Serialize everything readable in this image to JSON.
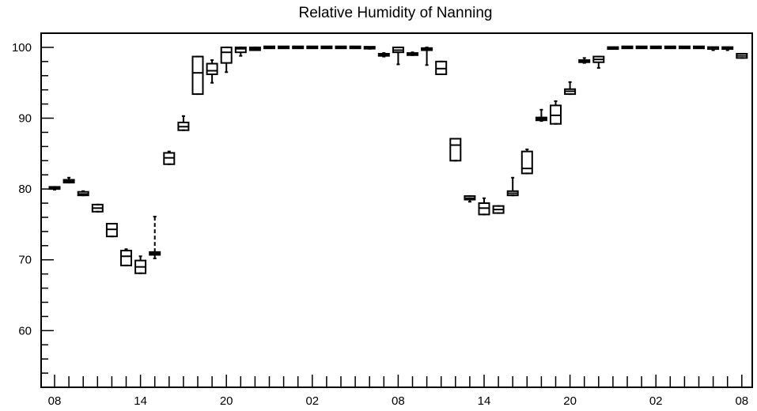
{
  "chart_data": {
    "type": "boxplot",
    "title": "Relative Humidity of Nanning",
    "xlabel": "",
    "ylabel": "",
    "ylim": [
      52,
      102
    ],
    "y_ticks": [
      60,
      70,
      80,
      90,
      100
    ],
    "x_tick_labels": [
      "08",
      "14",
      "20",
      "02",
      "08",
      "14",
      "20",
      "02",
      "08"
    ],
    "x_tick_hours": [
      0,
      6,
      12,
      18,
      24,
      30,
      36,
      42,
      48
    ],
    "grid": false,
    "legend": "none",
    "colors": {
      "box": "#000000",
      "background": "#ffffff"
    },
    "series": [
      {
        "hour": 0,
        "min": 79.9,
        "q1": 80.0,
        "median": 80.1,
        "q3": 80.3,
        "max": 80.3
      },
      {
        "hour": 1,
        "min": 80.9,
        "q1": 80.9,
        "median": 81.1,
        "q3": 81.3,
        "max": 81.6
      },
      {
        "hour": 2,
        "min": 79.1,
        "q1": 79.1,
        "median": 79.3,
        "q3": 79.6,
        "max": 79.7
      },
      {
        "hour": 3,
        "min": 76.8,
        "q1": 76.8,
        "median": 77.3,
        "q3": 77.8,
        "max": 77.8
      },
      {
        "hour": 4,
        "min": 73.3,
        "q1": 73.3,
        "median": 74.3,
        "q3": 75.1,
        "max": 75.1
      },
      {
        "hour": 5,
        "min": 69.2,
        "q1": 69.2,
        "median": 70.5,
        "q3": 71.3,
        "max": 71.5
      },
      {
        "hour": 6,
        "min": 68.1,
        "q1": 68.1,
        "median": 69.0,
        "q3": 69.9,
        "max": 70.5
      },
      {
        "hour": 7,
        "min": 70.2,
        "q1": 70.7,
        "median": 70.9,
        "q3": 71.1,
        "max": 76.1
      },
      {
        "hour": 8,
        "min": 83.5,
        "q1": 83.5,
        "median": 84.4,
        "q3": 85.1,
        "max": 85.3
      },
      {
        "hour": 9,
        "min": 88.3,
        "q1": 88.3,
        "median": 88.8,
        "q3": 89.4,
        "max": 90.3
      },
      {
        "hour": 10,
        "min": 93.4,
        "q1": 93.4,
        "median": 96.4,
        "q3": 98.7,
        "max": 98.7
      },
      {
        "hour": 11,
        "min": 95.0,
        "q1": 96.2,
        "median": 96.7,
        "q3": 97.7,
        "max": 98.2
      },
      {
        "hour": 12,
        "min": 96.5,
        "q1": 97.8,
        "median": 99.3,
        "q3": 100.0,
        "max": 100.0
      },
      {
        "hour": 13,
        "min": 98.8,
        "q1": 99.3,
        "median": 99.8,
        "q3": 100.0,
        "max": 100.0
      },
      {
        "hour": 14,
        "min": 99.6,
        "q1": 99.6,
        "median": 99.8,
        "q3": 100.0,
        "max": 100.0
      },
      {
        "hour": 15,
        "min": 100.0,
        "q1": 100.0,
        "median": 100.0,
        "q3": 100.0,
        "max": 100.0
      },
      {
        "hour": 16,
        "min": 100.0,
        "q1": 100.0,
        "median": 100.0,
        "q3": 100.0,
        "max": 100.0
      },
      {
        "hour": 17,
        "min": 100.0,
        "q1": 100.0,
        "median": 100.0,
        "q3": 100.0,
        "max": 100.0
      },
      {
        "hour": 18,
        "min": 100.0,
        "q1": 100.0,
        "median": 100.0,
        "q3": 100.0,
        "max": 100.0
      },
      {
        "hour": 19,
        "min": 100.0,
        "q1": 100.0,
        "median": 100.0,
        "q3": 100.0,
        "max": 100.0
      },
      {
        "hour": 20,
        "min": 100.0,
        "q1": 100.0,
        "median": 100.0,
        "q3": 100.0,
        "max": 100.0
      },
      {
        "hour": 21,
        "min": 100.0,
        "q1": 100.0,
        "median": 100.0,
        "q3": 100.0,
        "max": 100.0
      },
      {
        "hour": 22,
        "min": 99.8,
        "q1": 99.9,
        "median": 100.0,
        "q3": 100.0,
        "max": 100.0
      },
      {
        "hour": 23,
        "min": 98.7,
        "q1": 98.8,
        "median": 98.9,
        "q3": 99.1,
        "max": 99.2
      },
      {
        "hour": 24,
        "min": 97.6,
        "q1": 99.3,
        "median": 99.6,
        "q3": 100.0,
        "max": 100.0
      },
      {
        "hour": 25,
        "min": 98.9,
        "q1": 98.9,
        "median": 99.0,
        "q3": 99.2,
        "max": 99.3
      },
      {
        "hour": 26,
        "min": 97.5,
        "q1": 99.6,
        "median": 99.8,
        "q3": 99.9,
        "max": 100.0
      },
      {
        "hour": 27,
        "min": 96.2,
        "q1": 96.2,
        "median": 97.0,
        "q3": 98.0,
        "max": 98.0
      },
      {
        "hour": 28,
        "min": 84.0,
        "q1": 84.0,
        "median": 86.2,
        "q3": 87.1,
        "max": 87.1
      },
      {
        "hour": 29,
        "min": 78.2,
        "q1": 78.5,
        "median": 78.7,
        "q3": 79.0,
        "max": 79.0
      },
      {
        "hour": 30,
        "min": 76.4,
        "q1": 76.4,
        "median": 77.3,
        "q3": 78.0,
        "max": 78.7
      },
      {
        "hour": 31,
        "min": 76.6,
        "q1": 76.6,
        "median": 77.1,
        "q3": 77.6,
        "max": 77.6
      },
      {
        "hour": 32,
        "min": 79.1,
        "q1": 79.1,
        "median": 79.4,
        "q3": 79.7,
        "max": 81.6
      },
      {
        "hour": 33,
        "min": 82.2,
        "q1": 82.2,
        "median": 82.9,
        "q3": 85.3,
        "max": 85.6
      },
      {
        "hour": 34,
        "min": 89.6,
        "q1": 89.7,
        "median": 89.9,
        "q3": 90.1,
        "max": 91.2
      },
      {
        "hour": 35,
        "min": 89.2,
        "q1": 89.2,
        "median": 90.4,
        "q3": 91.8,
        "max": 92.4
      },
      {
        "hour": 36,
        "min": 93.4,
        "q1": 93.4,
        "median": 93.8,
        "q3": 94.1,
        "max": 95.1
      },
      {
        "hour": 37,
        "min": 97.8,
        "q1": 97.9,
        "median": 98.1,
        "q3": 98.2,
        "max": 98.5
      },
      {
        "hour": 38,
        "min": 97.1,
        "q1": 97.9,
        "median": 98.3,
        "q3": 98.7,
        "max": 98.7
      },
      {
        "hour": 39,
        "min": 99.8,
        "q1": 99.8,
        "median": 99.9,
        "q3": 100.0,
        "max": 100.0
      },
      {
        "hour": 40,
        "min": 100.0,
        "q1": 100.0,
        "median": 100.0,
        "q3": 100.0,
        "max": 100.0
      },
      {
        "hour": 41,
        "min": 100.0,
        "q1": 100.0,
        "median": 100.0,
        "q3": 100.0,
        "max": 100.0
      },
      {
        "hour": 42,
        "min": 100.0,
        "q1": 100.0,
        "median": 100.0,
        "q3": 100.0,
        "max": 100.0
      },
      {
        "hour": 43,
        "min": 100.0,
        "q1": 100.0,
        "median": 100.0,
        "q3": 100.0,
        "max": 100.0
      },
      {
        "hour": 44,
        "min": 100.0,
        "q1": 100.0,
        "median": 100.0,
        "q3": 100.0,
        "max": 100.0
      },
      {
        "hour": 45,
        "min": 100.0,
        "q1": 100.0,
        "median": 100.0,
        "q3": 100.0,
        "max": 100.0
      },
      {
        "hour": 46,
        "min": 99.6,
        "q1": 99.8,
        "median": 100.0,
        "q3": 100.0,
        "max": 100.0
      },
      {
        "hour": 47,
        "min": 99.6,
        "q1": 99.8,
        "median": 99.9,
        "q3": 100.0,
        "max": 100.0
      },
      {
        "hour": 48,
        "min": 98.5,
        "q1": 98.5,
        "median": 98.8,
        "q3": 99.1,
        "max": 99.1
      }
    ]
  }
}
